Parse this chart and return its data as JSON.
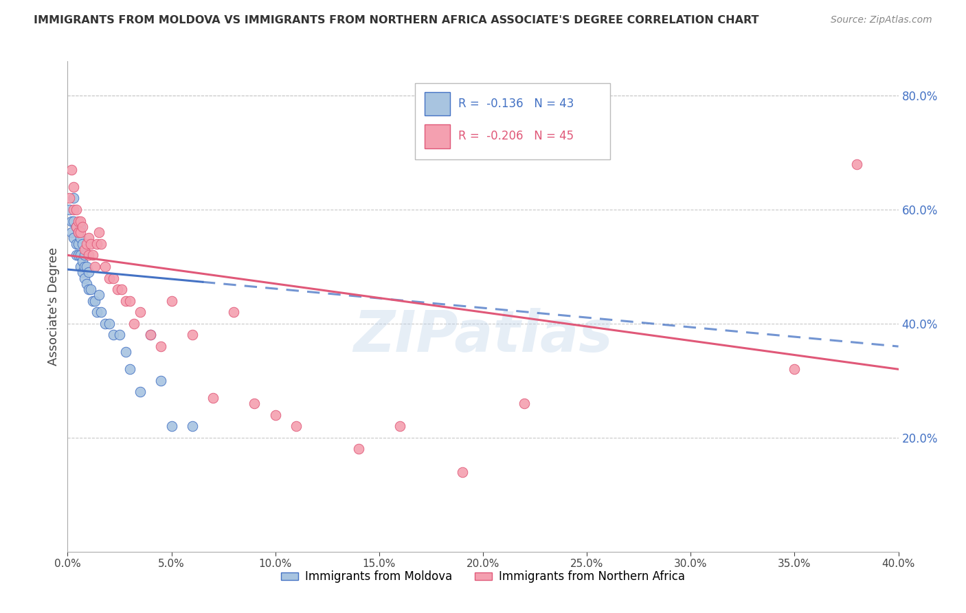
{
  "title": "IMMIGRANTS FROM MOLDOVA VS IMMIGRANTS FROM NORTHERN AFRICA ASSOCIATE'S DEGREE CORRELATION CHART",
  "source": "Source: ZipAtlas.com",
  "ylabel": "Associate's Degree",
  "legend_label1": "Immigrants from Moldova",
  "legend_label2": "Immigrants from Northern Africa",
  "R1": -0.136,
  "N1": 43,
  "R2": -0.206,
  "N2": 45,
  "xlim": [
    0.0,
    0.4
  ],
  "ylim": [
    0.0,
    0.86
  ],
  "xticks": [
    0.0,
    0.05,
    0.1,
    0.15,
    0.2,
    0.25,
    0.3,
    0.35,
    0.4
  ],
  "yticks_right": [
    0.2,
    0.4,
    0.6,
    0.8
  ],
  "color_moldova": "#a8c4e0",
  "color_n_africa": "#f4a0b0",
  "color_line_moldova": "#4472c4",
  "color_line_n_africa": "#e05878",
  "moldova_x": [
    0.001,
    0.002,
    0.002,
    0.003,
    0.003,
    0.003,
    0.004,
    0.004,
    0.004,
    0.005,
    0.005,
    0.005,
    0.006,
    0.006,
    0.006,
    0.006,
    0.007,
    0.007,
    0.007,
    0.008,
    0.008,
    0.008,
    0.009,
    0.009,
    0.01,
    0.01,
    0.011,
    0.012,
    0.013,
    0.014,
    0.015,
    0.016,
    0.018,
    0.02,
    0.022,
    0.025,
    0.028,
    0.03,
    0.035,
    0.04,
    0.045,
    0.05,
    0.06
  ],
  "moldova_y": [
    0.6,
    0.56,
    0.58,
    0.62,
    0.58,
    0.55,
    0.54,
    0.57,
    0.52,
    0.56,
    0.54,
    0.52,
    0.57,
    0.55,
    0.52,
    0.5,
    0.54,
    0.51,
    0.49,
    0.52,
    0.5,
    0.48,
    0.5,
    0.47,
    0.49,
    0.46,
    0.46,
    0.44,
    0.44,
    0.42,
    0.45,
    0.42,
    0.4,
    0.4,
    0.38,
    0.38,
    0.35,
    0.32,
    0.28,
    0.38,
    0.3,
    0.22,
    0.22
  ],
  "n_africa_x": [
    0.001,
    0.002,
    0.003,
    0.003,
    0.004,
    0.004,
    0.005,
    0.005,
    0.006,
    0.006,
    0.007,
    0.008,
    0.009,
    0.01,
    0.01,
    0.011,
    0.012,
    0.013,
    0.014,
    0.015,
    0.016,
    0.018,
    0.02,
    0.022,
    0.024,
    0.026,
    0.028,
    0.03,
    0.032,
    0.035,
    0.04,
    0.045,
    0.05,
    0.06,
    0.07,
    0.08,
    0.09,
    0.1,
    0.11,
    0.14,
    0.16,
    0.19,
    0.22,
    0.35,
    0.38
  ],
  "n_africa_y": [
    0.62,
    0.67,
    0.64,
    0.6,
    0.6,
    0.57,
    0.58,
    0.56,
    0.58,
    0.56,
    0.57,
    0.53,
    0.54,
    0.55,
    0.52,
    0.54,
    0.52,
    0.5,
    0.54,
    0.56,
    0.54,
    0.5,
    0.48,
    0.48,
    0.46,
    0.46,
    0.44,
    0.44,
    0.4,
    0.42,
    0.38,
    0.36,
    0.44,
    0.38,
    0.27,
    0.42,
    0.26,
    0.24,
    0.22,
    0.18,
    0.22,
    0.14,
    0.26,
    0.32,
    0.68
  ],
  "watermark": "ZIPatlas",
  "background_color": "#ffffff",
  "grid_color": "#c8c8c8",
  "trendline_moldova_x0": 0.0,
  "trendline_moldova_y0": 0.495,
  "trendline_moldova_x1": 0.4,
  "trendline_moldova_y1": 0.36,
  "trendline_moldova_solid_end": 0.065,
  "trendline_n_africa_x0": 0.0,
  "trendline_n_africa_y0": 0.52,
  "trendline_n_africa_x1": 0.4,
  "trendline_n_africa_y1": 0.32
}
